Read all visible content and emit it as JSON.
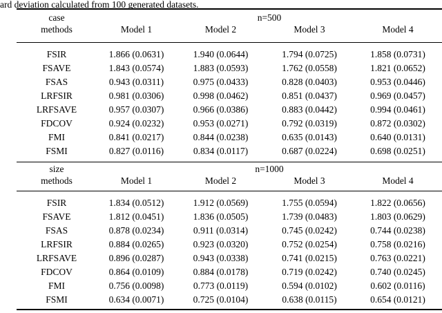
{
  "colors": {
    "text": "#000000",
    "background": "#ffffff"
  },
  "caption": "ard deviation calculated from 100 generated datasets.",
  "blocks": [
    {
      "group_label": "case",
      "methods_label": "methods",
      "span_header": "n=500",
      "col_headers": [
        "Model 1",
        "Model 2",
        "Model 3",
        "Model 4"
      ],
      "rows": [
        {
          "method": "FSIR",
          "values": [
            "1.866 (0.0631)",
            "1.940 (0.0644)",
            "1.794 (0.0725)",
            "1.858 (0.0731)"
          ]
        },
        {
          "method": "FSAVE",
          "values": [
            "1.843 (0.0574)",
            "1.883 (0.0593)",
            "1.762 (0.0558)",
            "1.821 (0.0652)"
          ]
        },
        {
          "method": "FSAS",
          "values": [
            "0.943 (0.0311)",
            "0.975 (0.0433)",
            "0.828 (0.0403)",
            "0.953 (0.0446)"
          ]
        },
        {
          "method": "LRFSIR",
          "values": [
            "0.981 (0.0306)",
            "0.998 (0.0462)",
            "0.851 (0.0437)",
            "0.969 (0.0457)"
          ]
        },
        {
          "method": "LRFSAVE",
          "values": [
            "0.957 (0.0307)",
            "0.966 (0.0386)",
            "0.883 (0.0442)",
            "0.994 (0.0461)"
          ]
        },
        {
          "method": "FDCOV",
          "values": [
            "0.924 (0.0232)",
            "0.953 (0.0271)",
            "0.792 (0.0319)",
            "0.872 (0.0302)"
          ]
        },
        {
          "method": "FMI",
          "values": [
            "0.841 (0.0217)",
            "0.844 (0.0238)",
            "0.635 (0.0143)",
            "0.640 (0.0131)"
          ]
        },
        {
          "method": "FSMI",
          "values": [
            "0.827 (0.0116)",
            "0.834 (0.0117)",
            "0.687 (0.0224)",
            "0.698 (0.0251)"
          ]
        }
      ]
    },
    {
      "group_label": "size",
      "methods_label": "methods",
      "span_header": "n=1000",
      "col_headers": [
        "Model 1",
        "Model 2",
        "Model 3",
        "Model 4"
      ],
      "rows": [
        {
          "method": "FSIR",
          "values": [
            "1.834 (0.0512)",
            "1.912 (0.0569)",
            "1.755 (0.0594)",
            "1.822 (0.0656)"
          ]
        },
        {
          "method": "FSAVE",
          "values": [
            "1.812 (0.0451)",
            "1.836 (0.0505)",
            "1.739 (0.0483)",
            "1.803 (0.0629)"
          ]
        },
        {
          "method": "FSAS",
          "values": [
            "0.878 (0.0234)",
            "0.911 (0.0314)",
            "0.745 (0.0242)",
            "0.744 (0.0238)"
          ]
        },
        {
          "method": "LRFSIR",
          "values": [
            "0.884 (0.0265)",
            "0.923 (0.0320)",
            "0.752 (0.0254)",
            "0.758 (0.0216)"
          ]
        },
        {
          "method": "LRFSAVE",
          "values": [
            "0.896 (0.0287)",
            "0.943 (0.0338)",
            "0.741 (0.0215)",
            "0.763 (0.0221)"
          ]
        },
        {
          "method": "FDCOV",
          "values": [
            "0.864 (0.0109)",
            "0.884 (0.0178)",
            "0.719 (0.0242)",
            "0.740 (0.0245)"
          ]
        },
        {
          "method": "FMI",
          "values": [
            "0.756 (0.0098)",
            "0.773 (0.0119)",
            "0.594 (0.0102)",
            "0.602 (0.0116)"
          ]
        },
        {
          "method": "FSMI",
          "values": [
            "0.634 (0.0071)",
            "0.725 (0.0104)",
            "0.638 (0.0115)",
            "0.654 (0.0121)"
          ]
        }
      ]
    }
  ]
}
